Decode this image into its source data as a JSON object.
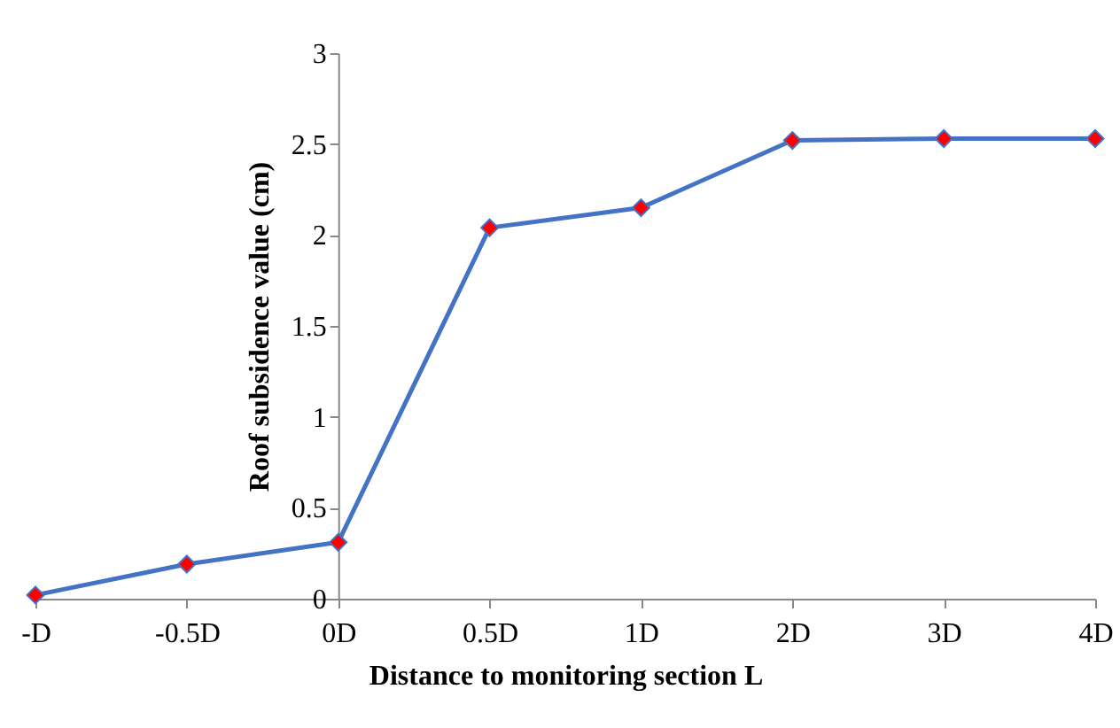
{
  "chart_data": {
    "type": "line",
    "xlabel": "Distance to monitoring section L",
    "ylabel": "Roof subsidence value (cm)",
    "categories": [
      "-D",
      "-0.5D",
      "0D",
      "0.5D",
      "1D",
      "2D",
      "3D",
      "4D"
    ],
    "series": [
      {
        "color": "#4472c4",
        "values": [
          0.02,
          0.19,
          0.31,
          2.04,
          2.15,
          2.52,
          2.53,
          2.53
        ]
      }
    ],
    "ylim": [
      0,
      3
    ],
    "yticks": [
      0,
      0.5,
      1,
      1.5,
      2,
      2.5,
      3
    ],
    "grid": false,
    "marker": "diamond",
    "line_style": "solid"
  }
}
